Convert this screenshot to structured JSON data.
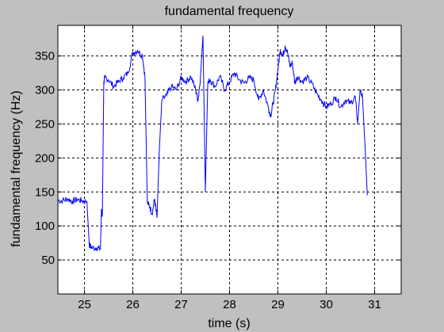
{
  "chart_data": {
    "type": "line",
    "title": "fundamental frequency",
    "xlabel": "time (s)",
    "ylabel": "fundamental frequency (Hz)",
    "xlim": [
      24.45,
      31.55
    ],
    "ylim": [
      0,
      395
    ],
    "xticks": [
      25,
      26,
      27,
      28,
      29,
      30,
      31
    ],
    "yticks": [
      50,
      100,
      150,
      200,
      250,
      300,
      350
    ],
    "grid": true,
    "colors": {
      "line": "#0000ff",
      "plot_bg": "#ffffff",
      "figure_bg": "#c0c0c0"
    },
    "series": [
      {
        "x": [
          24.45,
          24.55,
          24.65,
          24.75,
          24.85,
          24.95,
          25.05,
          25.1,
          25.15,
          25.25,
          25.33,
          25.35,
          25.37,
          25.4,
          25.42,
          25.5,
          25.6,
          25.7,
          25.8,
          25.9,
          26.0,
          26.1,
          26.2,
          26.25,
          26.3,
          26.35,
          26.4,
          26.45,
          26.5,
          26.55,
          26.6,
          26.7,
          26.8,
          26.9,
          27.0,
          27.1,
          27.2,
          27.3,
          27.35,
          27.4,
          27.45,
          27.5,
          27.55,
          27.6,
          27.7,
          27.8,
          27.9,
          28.0,
          28.1,
          28.2,
          28.3,
          28.4,
          28.5,
          28.6,
          28.7,
          28.8,
          28.85,
          28.9,
          28.95,
          29.0,
          29.05,
          29.1,
          29.15,
          29.2,
          29.25,
          29.3,
          29.35,
          29.4,
          29.5,
          29.6,
          29.7,
          29.8,
          29.9,
          30.0,
          30.1,
          30.2,
          30.3,
          30.4,
          30.5,
          30.6,
          30.65,
          30.7,
          30.75,
          30.8,
          30.85
        ],
        "y": [
          138,
          137,
          140,
          136,
          139,
          137,
          136,
          72,
          68,
          68,
          66,
          125,
          115,
          310,
          318,
          315,
          305,
          312,
          318,
          325,
          355,
          358,
          350,
          320,
          135,
          128,
          118,
          140,
          112,
          215,
          285,
          292,
          305,
          300,
          318,
          312,
          320,
          300,
          285,
          320,
          380,
          150,
          310,
          315,
          305,
          320,
          300,
          312,
          325,
          315,
          310,
          318,
          315,
          285,
          300,
          275,
          262,
          280,
          300,
          330,
          360,
          350,
          365,
          355,
          335,
          340,
          310,
          320,
          312,
          318,
          310,
          295,
          285,
          275,
          280,
          290,
          275,
          285,
          280,
          290,
          250,
          300,
          290,
          220,
          145
        ]
      }
    ]
  }
}
